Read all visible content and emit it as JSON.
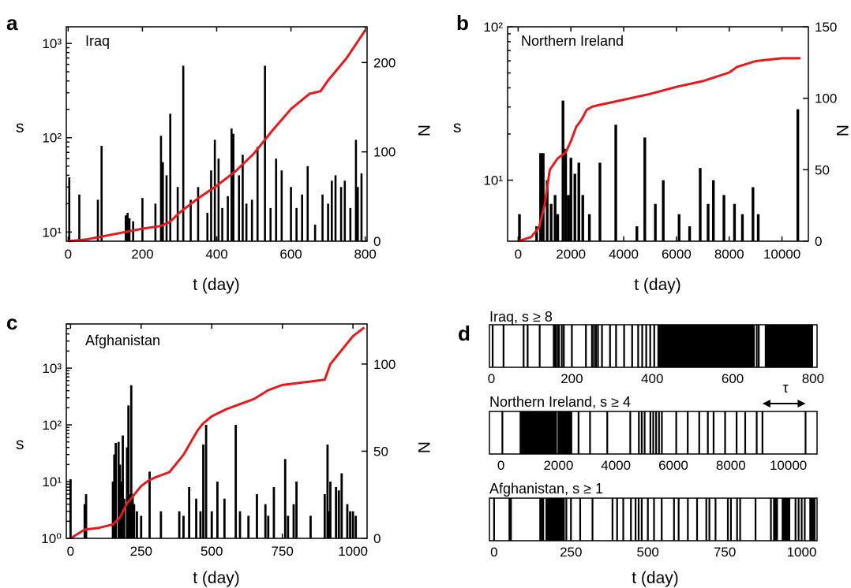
{
  "colors": {
    "cumulative_line": "#e41a1c",
    "spikes": "#000000",
    "background": "#ffffff"
  },
  "panels": {
    "a": {
      "letter": "a",
      "name": "Iraq",
      "ylabel_left": "s",
      "ylabel_right": "N",
      "xlabel": "t (day)"
    },
    "b": {
      "letter": "b",
      "name": "Northern Ireland",
      "ylabel_left": "s",
      "ylabel_right": "N",
      "xlabel": "t (day)"
    },
    "c": {
      "letter": "c",
      "name": "Afghanistan",
      "ylabel_left": "s",
      "ylabel_right": "N",
      "xlabel": "t (day)"
    },
    "d": {
      "letter": "d",
      "xlabel": "t (day)",
      "tau_label": "τ",
      "rows": [
        {
          "label": "Iraq, s ≥ 8"
        },
        {
          "label": "Northern Ireland, s ≥ 4"
        },
        {
          "label": "Afghanistan, s ≥ 1"
        }
      ]
    }
  },
  "chart_data": [
    {
      "panel": "a",
      "type": "bar+line",
      "title": "Iraq",
      "xlabel": "t (day)",
      "ylabel": "s",
      "ylabel_right": "N",
      "xlim": [
        -5,
        805
      ],
      "x_ticks": [
        0,
        200,
        400,
        600,
        800
      ],
      "y_scale": "log",
      "ylim": [
        8,
        1500
      ],
      "y_ticks": [
        10,
        100,
        1000
      ],
      "y_tick_labels": [
        "10¹",
        "10²",
        "10³"
      ],
      "y2lim": [
        0,
        240
      ],
      "y2_ticks": [
        0,
        100,
        200
      ],
      "spikes_x": [
        3,
        30,
        80,
        90,
        155,
        160,
        165,
        175,
        200,
        235,
        250,
        255,
        265,
        275,
        295,
        310,
        330,
        350,
        375,
        385,
        395,
        405,
        415,
        430,
        440,
        445,
        460,
        470,
        480,
        495,
        510,
        530,
        545,
        560,
        575,
        600,
        615,
        630,
        645,
        665,
        685,
        700,
        710,
        720,
        735,
        745,
        760,
        775,
        780,
        790
      ],
      "spikes_s": [
        38,
        25,
        22,
        82,
        15,
        16,
        14,
        13,
        23,
        20,
        105,
        55,
        40,
        180,
        30,
        580,
        22,
        30,
        16,
        45,
        95,
        60,
        18,
        24,
        125,
        110,
        40,
        66,
        20,
        22,
        80,
        580,
        18,
        60,
        45,
        30,
        18,
        25,
        50,
        12,
        25,
        20,
        35,
        40,
        30,
        35,
        18,
        95,
        30,
        42
      ],
      "series": [
        {
          "name": "N",
          "x": [
            0,
            50,
            100,
            150,
            200,
            250,
            275,
            300,
            350,
            400,
            450,
            500,
            550,
            600,
            650,
            680,
            700,
            750,
            800
          ],
          "y": [
            0,
            2,
            6,
            10,
            14,
            17,
            22,
            32,
            48,
            62,
            78,
            98,
            124,
            148,
            165,
            168,
            180,
            205,
            236
          ]
        }
      ]
    },
    {
      "panel": "b",
      "type": "bar+line",
      "title": "Northern Ireland",
      "xlabel": "t (day)",
      "ylabel": "s",
      "ylabel_right": "N",
      "xlim": [
        -400,
        11000
      ],
      "x_ticks": [
        0,
        2000,
        4000,
        6000,
        8000,
        10000
      ],
      "y_scale": "log",
      "ylim": [
        4,
        100
      ],
      "y_ticks": [
        10,
        100
      ],
      "y_tick_labels": [
        "10¹",
        "10²"
      ],
      "y2lim": [
        0,
        150
      ],
      "y2_ticks": [
        0,
        50,
        100,
        150
      ],
      "spikes_x": [
        50,
        700,
        850,
        950,
        1100,
        1250,
        1400,
        1500,
        1700,
        1800,
        1900,
        2000,
        2150,
        2300,
        2450,
        2700,
        3100,
        3700,
        4500,
        4800,
        5200,
        5500,
        6100,
        6500,
        6900,
        7200,
        7400,
        7800,
        8200,
        8500,
        8900,
        9100,
        10600
      ],
      "spikes_s": [
        6,
        5,
        15,
        15,
        10,
        7,
        8,
        6,
        33,
        16,
        8,
        14,
        11,
        13,
        8,
        6,
        13,
        23,
        5,
        19,
        7,
        10,
        6,
        5,
        12,
        7,
        10,
        8,
        7,
        6,
        9,
        6,
        29
      ],
      "series": [
        {
          "name": "N",
          "x": [
            0,
            500,
            800,
            1000,
            1200,
            1500,
            1800,
            2000,
            2200,
            2400,
            2600,
            2800,
            3000,
            4000,
            5000,
            6000,
            7000,
            8000,
            8300,
            9000,
            10000,
            10700
          ],
          "y": [
            0,
            3,
            10,
            25,
            50,
            58,
            62,
            70,
            80,
            85,
            92,
            94,
            95,
            99,
            103,
            108,
            112,
            118,
            122,
            126,
            128,
            128
          ]
        }
      ]
    },
    {
      "panel": "c",
      "type": "bar+line",
      "title": "Afghanistan",
      "xlabel": "t (day)",
      "ylabel": "s",
      "ylabel_right": "N",
      "xlim": [
        -15,
        1050
      ],
      "x_ticks": [
        0,
        250,
        500,
        750,
        1000
      ],
      "y_scale": "log",
      "ylim": [
        1,
        6000
      ],
      "y_ticks": [
        1,
        10,
        100,
        1000
      ],
      "y_tick_labels": [
        "10⁰",
        "10¹",
        "10²",
        "10³"
      ],
      "y2lim": [
        0,
        123
      ],
      "y2_ticks": [
        0,
        50,
        100
      ],
      "spikes_x": [
        0,
        50,
        55,
        150,
        155,
        160,
        170,
        175,
        180,
        185,
        190,
        200,
        205,
        210,
        215,
        220,
        225,
        235,
        250,
        280,
        320,
        385,
        400,
        420,
        445,
        460,
        470,
        480,
        500,
        520,
        545,
        585,
        600,
        630,
        660,
        690,
        700,
        720,
        760,
        770,
        790,
        800,
        850,
        900,
        910,
        915,
        920,
        940,
        950,
        960,
        980,
        990,
        1000,
        1010
      ],
      "spikes_s": [
        11,
        4,
        6,
        10,
        30,
        48,
        50,
        20,
        10,
        65,
        5,
        40,
        220,
        6,
        500,
        6,
        4,
        3,
        2.5,
        15,
        3,
        3,
        2.5,
        8,
        5,
        3,
        45,
        100,
        3,
        10,
        5,
        100,
        3,
        2.5,
        6,
        4,
        2.5,
        8,
        25,
        2.5,
        4,
        10,
        2.5,
        6,
        45,
        3,
        10,
        8,
        7,
        14,
        4,
        3,
        3,
        2.5
      ],
      "series": [
        {
          "name": "N",
          "x": [
            0,
            50,
            100,
            150,
            175,
            200,
            225,
            250,
            275,
            300,
            350,
            400,
            450,
            470,
            500,
            550,
            600,
            650,
            700,
            750,
            800,
            850,
            900,
            920,
            960,
            1000,
            1040
          ],
          "y": [
            0,
            5,
            6,
            8,
            12,
            20,
            25,
            30,
            33,
            35,
            38,
            48,
            62,
            66,
            70,
            74,
            77,
            80,
            85,
            88,
            89,
            90,
            91,
            100,
            108,
            116,
            121
          ]
        }
      ]
    },
    {
      "panel": "d",
      "type": "event-raster",
      "xlabel": "t (day)",
      "rows": [
        {
          "label": "Iraq, s ≥ 8",
          "xlim": [
            -5,
            810
          ],
          "x_ticks": [
            0,
            200,
            400,
            600,
            800
          ],
          "events": [
            3,
            30,
            80,
            90,
            120,
            155,
            158,
            160,
            165,
            168,
            175,
            180,
            200,
            235,
            250,
            255,
            260,
            265,
            275,
            295,
            310,
            330,
            350,
            365,
            375,
            385,
            395,
            405,
            415,
            430,
            440,
            445,
            450,
            455,
            460,
            470,
            480,
            485,
            495,
            500,
            510,
            520,
            530,
            535,
            545,
            550,
            560,
            570,
            575,
            585,
            590,
            600,
            610,
            615,
            620,
            630,
            640,
            645,
            650,
            660,
            665,
            685,
            690,
            695,
            700,
            705,
            710,
            715,
            720,
            725,
            730,
            735,
            740,
            745,
            750,
            755,
            760,
            765,
            770,
            775,
            780,
            785,
            790,
            795
          ],
          "filled_spans": [
            [
              415,
              655
            ],
            [
              680,
              800
            ]
          ]
        },
        {
          "label": "Northern Ireland, s ≥ 4",
          "xlim": [
            -400,
            11000
          ],
          "x_ticks": [
            0,
            2000,
            4000,
            6000,
            8000,
            10000
          ],
          "events": [
            50,
            700,
            850,
            950,
            1100,
            1250,
            1400,
            1500,
            1700,
            1800,
            1900,
            2000,
            2150,
            2300,
            2450,
            2700,
            3100,
            3700,
            4500,
            4800,
            4900,
            5000,
            5200,
            5300,
            5400,
            5500,
            5600,
            6100,
            6500,
            6900,
            7200,
            7400,
            7800,
            8200,
            8500,
            8900,
            9100,
            10600
          ],
          "filled_spans": [
            [
              650,
              1950
            ],
            [
              2000,
              2450
            ]
          ],
          "tau_span": [
            9100,
            10600
          ]
        },
        {
          "label": "Afghanistan, s ≥ 1",
          "xlim": [
            -15,
            1050
          ],
          "x_ticks": [
            0,
            250,
            500,
            750,
            1000
          ],
          "events": [
            0,
            50,
            55,
            150,
            155,
            160,
            170,
            175,
            180,
            185,
            190,
            200,
            205,
            210,
            215,
            220,
            225,
            235,
            250,
            280,
            320,
            385,
            400,
            420,
            445,
            460,
            470,
            480,
            500,
            520,
            545,
            585,
            600,
            630,
            660,
            690,
            700,
            720,
            760,
            770,
            790,
            800,
            850,
            900,
            910,
            915,
            920,
            940,
            950,
            960,
            980,
            990,
            1000,
            1010,
            1030,
            1040
          ],
          "filled_spans": [
            [
              170,
              230
            ],
            [
              935,
              960
            ],
            [
              1025,
              1045
            ]
          ]
        }
      ]
    }
  ]
}
